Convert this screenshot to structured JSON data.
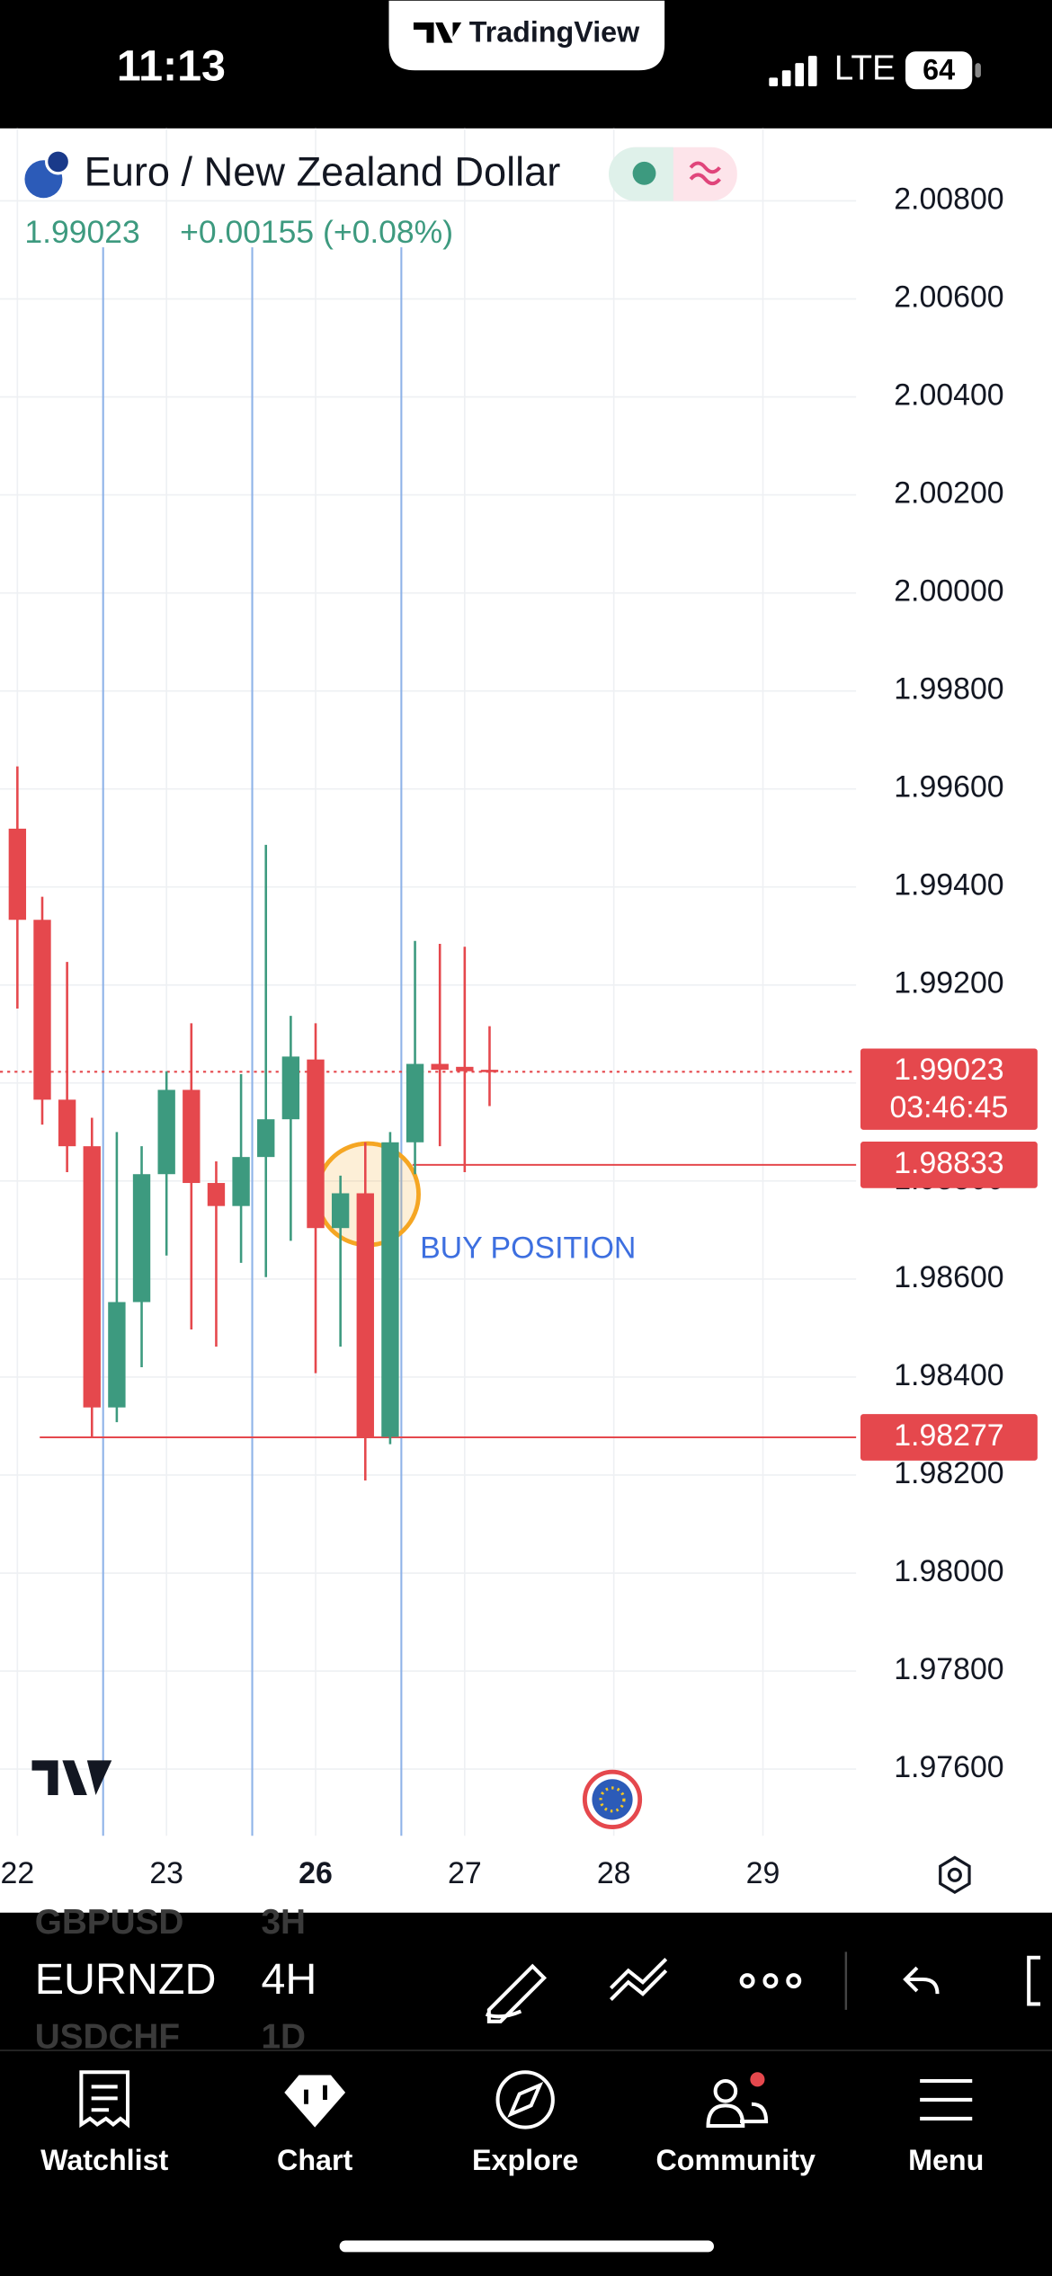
{
  "status_bar": {
    "time": "11:13",
    "network": "LTE",
    "battery": "64"
  },
  "app_pill": "TradingView",
  "header": {
    "symbol_name": "Euro / New Zealand Dollar",
    "last_price": "1.99023",
    "change": "+0.00155 (+0.08%)"
  },
  "chart_data": {
    "type": "candlestick",
    "open": [
      1.99519,
      1.99333,
      1.98966,
      1.98871,
      1.98338,
      1.98553,
      1.98814,
      1.98986,
      1.98796,
      1.98749,
      1.98849,
      1.98926,
      1.99048,
      1.98704,
      1.98775,
      1.98278,
      1.98879,
      1.99039,
      1.99033,
      1.99027
    ],
    "high": [
      1.99646,
      1.9938,
      1.99247,
      1.98929,
      1.989,
      1.98871,
      1.99024,
      1.99122,
      1.9884,
      1.99018,
      1.99486,
      1.99137,
      1.99122,
      1.98811,
      1.98879,
      1.989,
      1.9929,
      1.99284,
      1.99278,
      1.99116
    ],
    "low": [
      1.99152,
      1.98915,
      1.98818,
      1.98278,
      1.98308,
      1.9842,
      1.98648,
      1.98497,
      1.98462,
      1.98633,
      1.98604,
      1.98678,
      1.98408,
      1.98462,
      1.98189,
      1.98263,
      1.98814,
      1.98871,
      1.98818,
      1.98953
    ],
    "close": [
      1.99333,
      1.98966,
      1.98871,
      1.98338,
      1.98553,
      1.98814,
      1.98986,
      1.98796,
      1.98749,
      1.98849,
      1.98926,
      1.99054,
      1.98704,
      1.98775,
      1.98278,
      1.98879,
      1.99039,
      1.99027,
      1.99024,
      1.99023
    ],
    "up_color": "#3d9a7f",
    "down_color": "#e5484d",
    "ylim": [
      1.97464,
      2.00948
    ],
    "yticks": [
      {
        "value": 2.008,
        "label": "2.00800"
      },
      {
        "value": 2.006,
        "label": "2.00600"
      },
      {
        "value": 2.004,
        "label": "2.00400"
      },
      {
        "value": 2.002,
        "label": "2.00200"
      },
      {
        "value": 2.0,
        "label": "2.00000"
      },
      {
        "value": 1.998,
        "label": "1.99800"
      },
      {
        "value": 1.996,
        "label": "1.99600"
      },
      {
        "value": 1.994,
        "label": "1.99400"
      },
      {
        "value": 1.992,
        "label": "1.99200"
      },
      {
        "value": 1.99,
        "label": "1.99000"
      },
      {
        "value": 1.988,
        "label": "1.98800"
      },
      {
        "value": 1.986,
        "label": "1.98600"
      },
      {
        "value": 1.984,
        "label": "1.98400"
      },
      {
        "value": 1.982,
        "label": "1.98200"
      },
      {
        "value": 1.98,
        "label": "1.98000"
      },
      {
        "value": 1.978,
        "label": "1.97800"
      },
      {
        "value": 1.976,
        "label": "1.97600"
      }
    ],
    "xlim": [
      -0.7,
      33.75
    ],
    "xticks": [
      {
        "value": 0,
        "label": "22"
      },
      {
        "value": 6,
        "label": "23"
      },
      {
        "value": 12,
        "label": "26"
      },
      {
        "value": 18,
        "label": "27"
      },
      {
        "value": 24,
        "label": "28"
      },
      {
        "value": 30,
        "label": "29"
      }
    ],
    "grid": true,
    "vertical_lines": [
      3.45,
      9.45,
      15.45
    ],
    "price_lines": [
      {
        "value": 1.99023,
        "label": "1.99023",
        "countdown": "03:46:45",
        "from_x": -0.7,
        "style": "dotted"
      },
      {
        "value": 1.98833,
        "label": "1.98833",
        "from_x": 15.9,
        "style": "solid"
      },
      {
        "value": 1.98277,
        "label": "1.98277",
        "from_x": 0.9,
        "style": "solid"
      }
    ],
    "circle": {
      "x": 14.1,
      "y": 1.98773
    },
    "annotation": {
      "text": "BUY POSITION",
      "x": 16.2,
      "y": 1.98659
    }
  },
  "toolbar": {
    "symbols": [
      "GBPUSD",
      "EURNZD",
      "USDCHF"
    ],
    "intervals": [
      "3H",
      "4H",
      "1D"
    ]
  },
  "tab_bar": [
    "Watchlist",
    "Chart",
    "Explore",
    "Community",
    "Menu"
  ]
}
